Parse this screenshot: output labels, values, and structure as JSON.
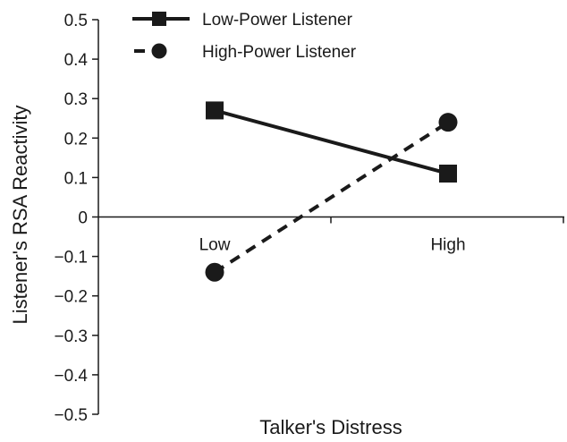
{
  "chart_data": {
    "type": "line",
    "categories": [
      "Low",
      "High"
    ],
    "series": [
      {
        "name": "Low-Power Listener",
        "values": [
          0.27,
          0.11
        ],
        "line_style": "solid",
        "marker": "square",
        "color": "#1a1a1a"
      },
      {
        "name": "High-Power Listener",
        "values": [
          -0.14,
          0.24
        ],
        "line_style": "dashed",
        "marker": "circle",
        "color": "#1a1a1a"
      }
    ],
    "title": "",
    "xlabel": "Talker's Distress",
    "ylabel": "Listener's RSA Reactivity",
    "ylim": [
      -0.5,
      0.5
    ],
    "yticks": [
      0.5,
      0.4,
      0.3,
      0.2,
      0.1,
      0,
      -0.1,
      -0.2,
      -0.3,
      -0.4,
      -0.5
    ],
    "ytick_labels": [
      "0.5",
      "0.4",
      "0.3",
      "0.2",
      "0.1",
      "0",
      "−0.1",
      "−0.2",
      "−0.3",
      "−0.4",
      "−0.5"
    ],
    "grid": false,
    "legend_position": "top-left"
  }
}
